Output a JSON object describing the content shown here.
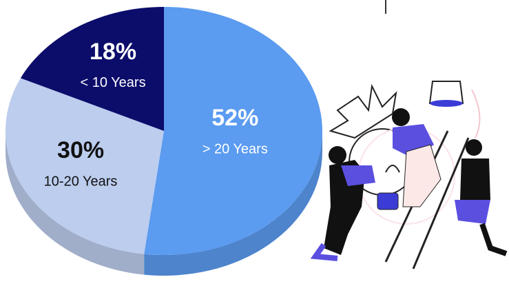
{
  "chart_data": {
    "type": "pie",
    "categories": [
      "> 20 Years",
      "10-20 Years",
      "< 10 Years"
    ],
    "values": [
      52,
      30,
      18
    ],
    "value_labels": [
      "52%",
      "30%",
      "18%"
    ],
    "colors": [
      "#5b9bf0",
      "#bccdee",
      "#0c0c6b"
    ]
  }
}
